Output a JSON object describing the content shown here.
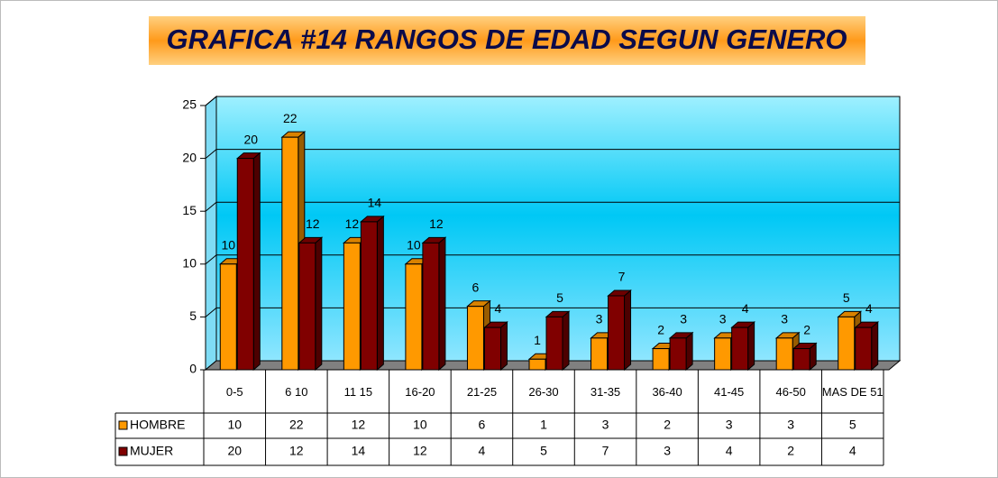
{
  "chart_data": {
    "type": "bar",
    "title": "GRAFICA #14 RANGOS DE EDAD SEGUN GENERO",
    "categories": [
      "0-5",
      "6 10",
      "11 15",
      "16-20",
      "21-25",
      "26-30",
      "31-35",
      "36-40",
      "41-45",
      "46-50",
      "MAS DE 51"
    ],
    "series": [
      {
        "name": "HOMBRE",
        "color": "#ff9900",
        "values": [
          10,
          22,
          12,
          10,
          6,
          1,
          3,
          2,
          3,
          3,
          5
        ]
      },
      {
        "name": "MUJER",
        "color": "#800000",
        "values": [
          20,
          12,
          14,
          12,
          4,
          5,
          7,
          3,
          4,
          2,
          4
        ]
      }
    ],
    "ylim": [
      0,
      25
    ],
    "yticks": [
      0,
      5,
      10,
      15,
      20,
      25
    ],
    "grid": true
  }
}
